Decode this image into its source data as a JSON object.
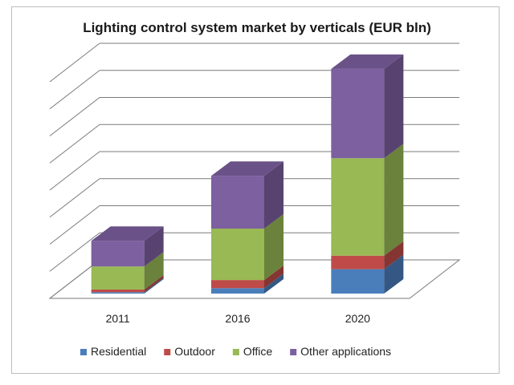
{
  "chart_data": {
    "type": "bar",
    "stacked": true,
    "three_d": true,
    "title": "Lighting control system market by verticals (EUR bln)",
    "categories": [
      "2011",
      "2016",
      "2020"
    ],
    "ylim": [
      0,
      8
    ],
    "grid": true,
    "legend_position": "bottom",
    "series": [
      {
        "name": "Residential",
        "color": "#4a7ebb",
        "values": [
          0.05,
          0.2,
          0.9
        ]
      },
      {
        "name": "Outdoor",
        "color": "#be4b48",
        "values": [
          0.1,
          0.3,
          0.5
        ]
      },
      {
        "name": "Office",
        "color": "#98b954",
        "values": [
          0.85,
          1.9,
          3.6
        ]
      },
      {
        "name": "Other applications",
        "color": "#7d60a0",
        "values": [
          0.95,
          1.95,
          3.3
        ]
      }
    ]
  }
}
